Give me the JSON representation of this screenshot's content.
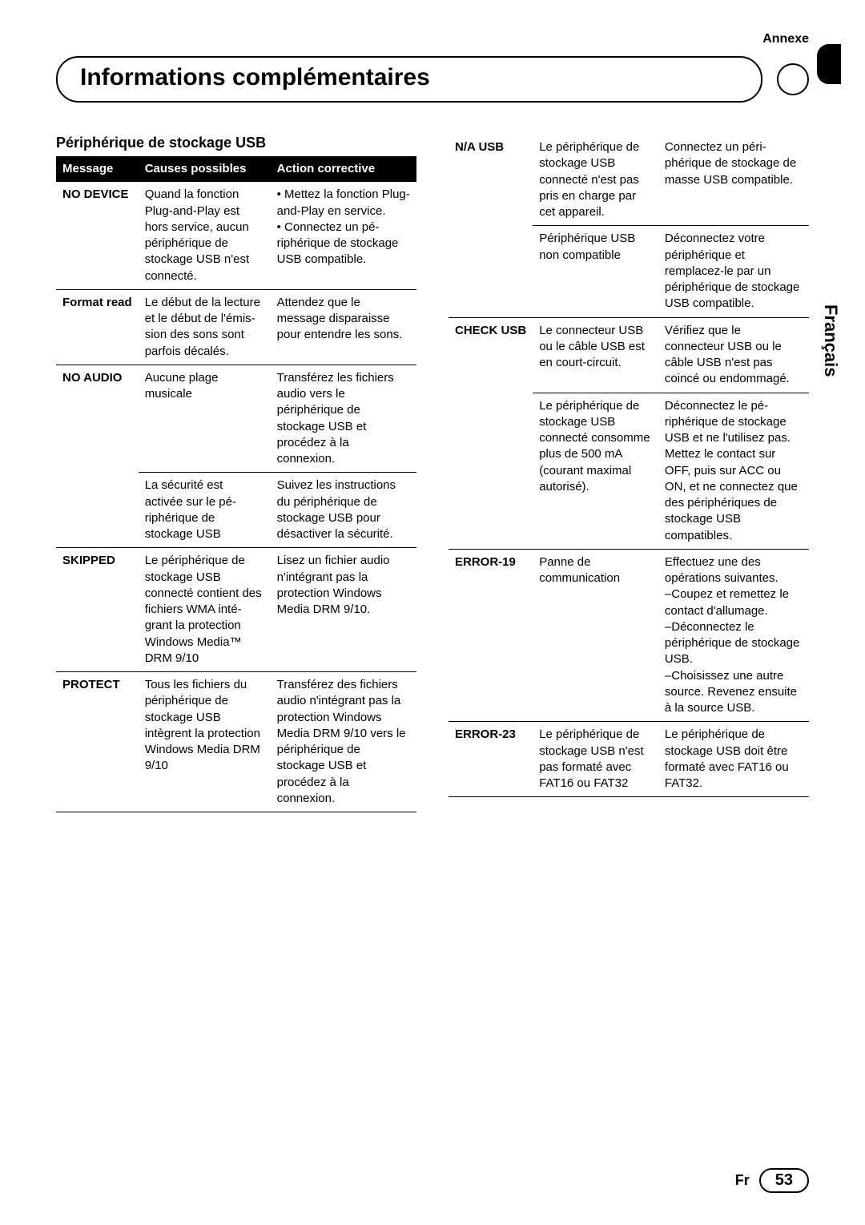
{
  "header": {
    "annexe": "Annexe",
    "title": "Informations complémentaires",
    "side_lang": "Français"
  },
  "left": {
    "subhead": "Périphérique de stockage USB",
    "columns": [
      "Message",
      "Causes possi­bles",
      "Action corrective"
    ],
    "rows": [
      {
        "msg": "NO DEVICE",
        "cause": "Quand la fonc­tion Plug-and-Play est hors ser­vice, aucun péri­phérique de stockage USB n'est connecté.",
        "action": "• Mettez la fonc­tion Plug-and-Play en service.\n• Connectez un pé­riphérique de stoc­kage USB compatible."
      },
      {
        "msg": "Format read",
        "cause": "Le début de la lecture et le début de l'émis­sion des sons sont parfois dé­calés.",
        "action": "Attendez que le message disparaisse pour enten­dre les sons."
      },
      {
        "msg": "NO AUDIO",
        "cause": "Aucune plage musicale",
        "action": "Transférez les fi­chiers audio vers le périphérique de stockage USB et procédez à la connexion.",
        "sep": true
      },
      {
        "msg": "",
        "cause": "La sécurité est activée sur le pé­riphérique de stockage USB",
        "action": "Suivez les instruc­tions du périphé­rique de stockage USB pour désacti­ver la sécurité."
      },
      {
        "msg": "SKIPPED",
        "cause": "Le périphérique de stockage USB connecté contient des fi­chiers WMA inté­grant la protection Windows Me­dia™ DRM 9/10",
        "action": "Lisez un fichier audio n'intégrant pas la protection Windows Media DRM 9/10."
      },
      {
        "msg": "PROTECT",
        "cause": "Tous les fichiers du périphérique de stockage USB intègrent la pro­tection Windows Media DRM 9/10",
        "action": "Transférez des fi­chiers audio n'inté­grant pas la protection Windows Media DRM 9/10 vers le périphérique de stockage USB et procédez à la connexion."
      }
    ]
  },
  "right": {
    "rows": [
      {
        "msg": "N/A USB",
        "cause": "Le périphérique de stockage USB connecté n'est pas pris en charge par cet appareil.",
        "action": "Connectez un péri­phérique de stoc­kage de masse USB compatible.",
        "sep": true
      },
      {
        "msg": "",
        "cause": "Périphérique USB non compa­tible",
        "action": "Déconnectez votre périphérique et remplacez-le par un périphérique de stockage USB compatible."
      },
      {
        "msg": "CHECK USB",
        "cause": "Le connecteur USB ou le câble USB est en court-circuit.",
        "action": "Vérifiez que le connecteur USB ou le câble USB n'est pas coincé ou endommagé.",
        "sep": true
      },
      {
        "msg": "",
        "cause": "Le périphérique de stockage USB connecté consomme plus de 500 mA (cou­rant maximal au­torisé).",
        "action": "Déconnectez le pé­riphérique de stoc­kage USB et ne l'utilisez pas. Met­tez le contact sur OFF, puis sur ACC ou ON, et ne connectez que des périphériques de stockage USB compatibles."
      },
      {
        "msg": "ERROR-19",
        "cause": "Panne de communication",
        "action": "Effectuez une des opérations suivan­tes.\n–Coupez et remet­tez le contact d'al­lumage.\n–Déconnectez le périphérique de stockage USB.\n–Choisissez une autre source. Revenez ensuite à la source USB."
      },
      {
        "msg": "ERROR-23",
        "cause": "Le périphérique de stockage USB n'est pas formaté avec FAT16 ou FAT32",
        "action": "Le périphérique de stockage USB doit être formaté avec FAT16 ou FAT32."
      }
    ]
  },
  "footer": {
    "lang_abbrev": "Fr",
    "page_number": "53"
  }
}
